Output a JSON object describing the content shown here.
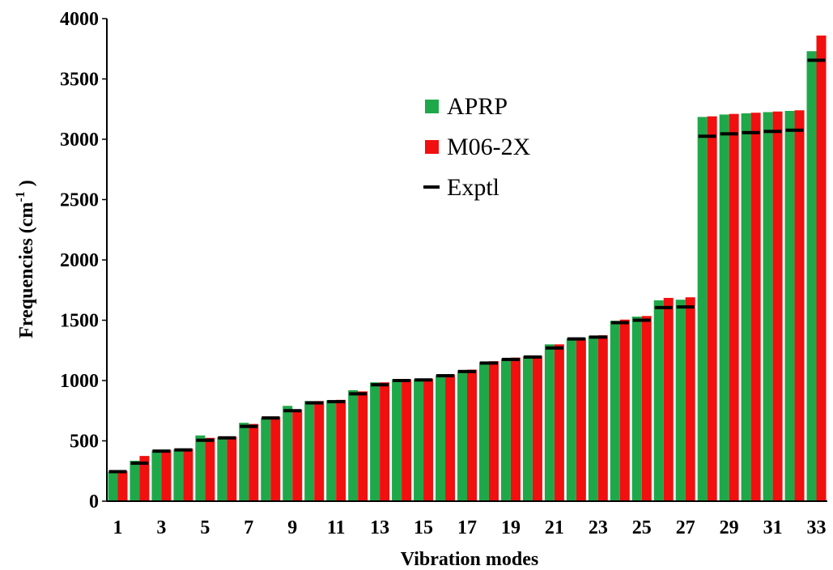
{
  "chart_data": {
    "type": "bar",
    "xlabel": "Vibration modes",
    "ylabel": "Frequencies (cm",
    "ylabel_sup": "-1",
    "ylabel_close": " )",
    "ylim": [
      0,
      4000
    ],
    "y_ticks": [
      "0",
      "500",
      "1000",
      "1500",
      "2000",
      "2500",
      "3000",
      "3500",
      "4000"
    ],
    "categories": [
      "1",
      "2",
      "3",
      "4",
      "5",
      "6",
      "7",
      "8",
      "9",
      "10",
      "11",
      "12",
      "13",
      "14",
      "15",
      "16",
      "17",
      "18",
      "19",
      "20",
      "21",
      "22",
      "23",
      "24",
      "25",
      "26",
      "27",
      "28",
      "29",
      "30",
      "31",
      "32",
      "33"
    ],
    "x_tick_labels": [
      "1",
      "",
      "3",
      "",
      "5",
      "",
      "7",
      "",
      "9",
      "",
      "11",
      "",
      "13",
      "",
      "15",
      "",
      "17",
      "",
      "19",
      "",
      "21",
      "",
      "23",
      "",
      "25",
      "",
      "27",
      "",
      "29",
      "",
      "31",
      "",
      "33"
    ],
    "series": [
      {
        "name": "APRP",
        "kind": "bar",
        "color": "#1fa84a",
        "values": [
          245,
          335,
          420,
          430,
          545,
          530,
          650,
          690,
          790,
          830,
          835,
          920,
          985,
          1010,
          1010,
          1045,
          1085,
          1155,
          1180,
          1200,
          1300,
          1350,
          1370,
          1495,
          1530,
          1665,
          1670,
          3185,
          3205,
          3215,
          3225,
          3235,
          3730
        ]
      },
      {
        "name": "M06-2X",
        "kind": "bar",
        "color": "#f20f0f",
        "values": [
          250,
          375,
          425,
          435,
          525,
          535,
          640,
          700,
          760,
          830,
          840,
          910,
          985,
          1010,
          1015,
          1050,
          1090,
          1160,
          1190,
          1205,
          1300,
          1355,
          1375,
          1505,
          1535,
          1685,
          1690,
          3190,
          3210,
          3220,
          3230,
          3240,
          3860
        ]
      },
      {
        "name": "Exptl",
        "kind": "marker",
        "color": "#000000",
        "values": [
          245,
          315,
          415,
          425,
          505,
          525,
          620,
          690,
          750,
          815,
          825,
          890,
          965,
          1000,
          1005,
          1040,
          1075,
          1145,
          1175,
          1195,
          1270,
          1345,
          1360,
          1480,
          1500,
          1605,
          1610,
          3025,
          3045,
          3055,
          3065,
          3075,
          3655
        ]
      }
    ],
    "legend": {
      "placement": "upper-center"
    }
  }
}
